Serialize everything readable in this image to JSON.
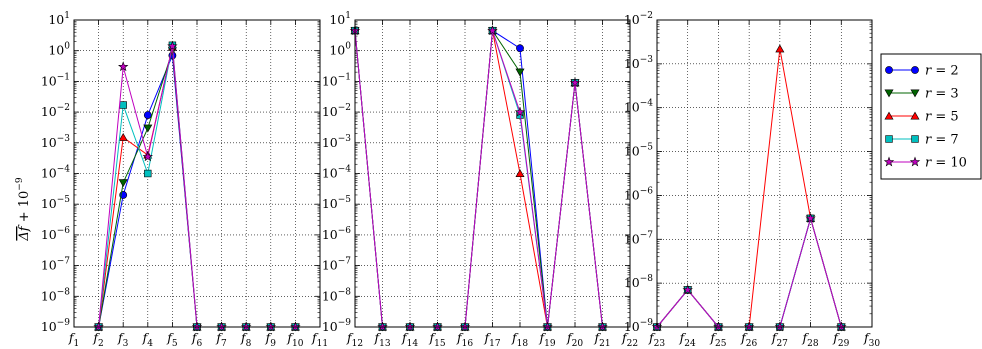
{
  "figure": {
    "ylabel": "Δf + 10⁻⁹",
    "ylabel_bar": "Δf",
    "ylabel_suffix": " + 10",
    "ylabel_exp": "−9"
  },
  "colors": {
    "r=2": "#0000ff",
    "r=3": "#006400",
    "r=5": "#ff0000",
    "r=7": "#00bfbf",
    "r=10": "#bf00bf"
  },
  "legend": {
    "placement": "right",
    "entries": [
      {
        "label": "r = 2",
        "lhs": "r",
        "rhs": "2",
        "marker": "circle",
        "color": "#0000ff"
      },
      {
        "label": "r = 3",
        "lhs": "r",
        "rhs": "3",
        "marker": "triangle-down",
        "color": "#006400"
      },
      {
        "label": "r = 5",
        "lhs": "r",
        "rhs": "5",
        "marker": "triangle-up",
        "color": "#ff0000"
      },
      {
        "label": "r = 7",
        "lhs": "r",
        "rhs": "7",
        "marker": "square",
        "color": "#00bfbf"
      },
      {
        "label": "r = 10",
        "lhs": "r",
        "rhs": "10",
        "marker": "star",
        "color": "#bf00bf"
      }
    ]
  },
  "chart_data": [
    {
      "type": "line",
      "yscale": "log",
      "ylim": [
        1e-09,
        10
      ],
      "yticks": [
        -9,
        -8,
        -7,
        -6,
        -5,
        -4,
        -3,
        -2,
        -1,
        0,
        1
      ],
      "grid": true,
      "categories": [
        "1",
        "2",
        "3",
        "4",
        "5",
        "6",
        "7",
        "8",
        "9",
        "10",
        "11"
      ],
      "series": [
        {
          "name": "r = 2",
          "marker": "circle",
          "color": "#0000ff",
          "values": [
            null,
            1e-09,
            2e-05,
            0.008,
            0.7,
            1e-09,
            1e-09,
            1e-09,
            1e-09,
            1e-09,
            null
          ]
        },
        {
          "name": "r = 3",
          "marker": "triangle-down",
          "color": "#006400",
          "values": [
            null,
            1e-09,
            5e-05,
            0.003,
            1.0,
            1e-09,
            1e-09,
            1e-09,
            1e-09,
            1e-09,
            null
          ]
        },
        {
          "name": "r = 5",
          "marker": "triangle-up",
          "color": "#ff0000",
          "values": [
            null,
            1e-09,
            0.0015,
            0.0004,
            1.3,
            1e-09,
            1e-09,
            1e-09,
            1e-09,
            1e-09,
            null
          ]
        },
        {
          "name": "r = 7",
          "marker": "square",
          "color": "#00bfbf",
          "values": [
            null,
            1e-09,
            0.017,
            0.0001,
            1.5,
            1e-09,
            1e-09,
            1e-09,
            1e-09,
            1e-09,
            null
          ]
        },
        {
          "name": "r = 10",
          "marker": "star",
          "color": "#bf00bf",
          "values": [
            null,
            1e-09,
            0.3,
            0.00035,
            1.4,
            1e-09,
            1e-09,
            1e-09,
            1e-09,
            1e-09,
            null
          ]
        }
      ]
    },
    {
      "type": "line",
      "yscale": "log",
      "ylim": [
        1e-09,
        10
      ],
      "yticks": [
        -9,
        -8,
        -7,
        -6,
        -5,
        -4,
        -3,
        -2,
        -1,
        0,
        1
      ],
      "grid": true,
      "categories": [
        "12",
        "13",
        "14",
        "15",
        "16",
        "17",
        "18",
        "19",
        "20",
        "21",
        "22"
      ],
      "series": [
        {
          "name": "r = 2",
          "marker": "circle",
          "color": "#0000ff",
          "values": [
            4.5,
            1e-09,
            1e-09,
            1e-09,
            1e-09,
            4.5,
            1.2,
            1e-09,
            0.09,
            1e-09,
            null
          ]
        },
        {
          "name": "r = 3",
          "marker": "triangle-down",
          "color": "#006400",
          "values": [
            4.5,
            1e-09,
            1e-09,
            1e-09,
            1e-09,
            4.5,
            0.2,
            1e-09,
            0.09,
            1e-09,
            null
          ]
        },
        {
          "name": "r = 5",
          "marker": "triangle-up",
          "color": "#ff0000",
          "values": [
            4.5,
            1e-09,
            1e-09,
            1e-09,
            1e-09,
            4.5,
            0.0001,
            1e-09,
            0.09,
            1e-09,
            null
          ]
        },
        {
          "name": "r = 7",
          "marker": "square",
          "color": "#00bfbf",
          "values": [
            4.5,
            1e-09,
            1e-09,
            1e-09,
            1e-09,
            4.5,
            0.008,
            1e-09,
            0.09,
            1e-09,
            null
          ]
        },
        {
          "name": "r = 10",
          "marker": "star",
          "color": "#bf00bf",
          "values": [
            4.5,
            1e-09,
            1e-09,
            1e-09,
            1e-09,
            4.5,
            0.01,
            1e-09,
            0.09,
            1e-09,
            null
          ]
        }
      ]
    },
    {
      "type": "line",
      "yscale": "log",
      "ylim": [
        1e-09,
        0.01
      ],
      "yticks": [
        -9,
        -8,
        -7,
        -6,
        -5,
        -4,
        -3,
        -2
      ],
      "grid": true,
      "categories": [
        "23",
        "24",
        "25",
        "26",
        "27",
        "28",
        "29",
        "30"
      ],
      "series": [
        {
          "name": "r = 2",
          "marker": "circle",
          "color": "#0000ff",
          "values": [
            1e-09,
            7e-09,
            1e-09,
            1e-09,
            1e-09,
            3e-07,
            1e-09,
            null
          ]
        },
        {
          "name": "r = 3",
          "marker": "triangle-down",
          "color": "#006400",
          "values": [
            1e-09,
            7e-09,
            1e-09,
            1e-09,
            1e-09,
            3e-07,
            1e-09,
            null
          ]
        },
        {
          "name": "r = 5",
          "marker": "triangle-up",
          "color": "#ff0000",
          "values": [
            1e-09,
            7e-09,
            1e-09,
            1e-09,
            0.0022,
            3e-07,
            1e-09,
            null
          ]
        },
        {
          "name": "r = 7",
          "marker": "square",
          "color": "#00bfbf",
          "values": [
            1e-09,
            7e-09,
            1e-09,
            1e-09,
            1e-09,
            3e-07,
            1e-09,
            null
          ]
        },
        {
          "name": "r = 10",
          "marker": "star",
          "color": "#bf00bf",
          "values": [
            1e-09,
            7e-09,
            1e-09,
            1e-09,
            1e-09,
            3e-07,
            1e-09,
            null
          ]
        }
      ]
    }
  ]
}
